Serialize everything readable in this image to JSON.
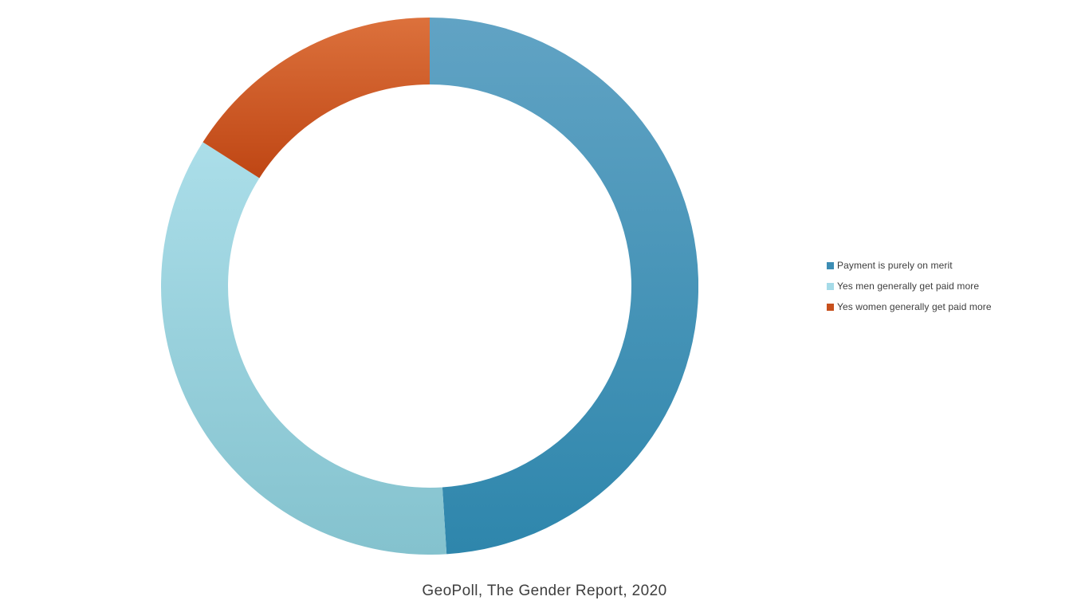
{
  "caption": "GeoPoll, The Gender Report, 2020",
  "legend": {
    "position": "right",
    "items": [
      {
        "label": "Payment is purely on merit",
        "color": "#3C8DB4"
      },
      {
        "label": "Yes men generally get paid more",
        "color": "#A5DBE8"
      },
      {
        "label": "Yes women generally get paid more",
        "color": "#C7501D"
      }
    ]
  },
  "chart_data": {
    "type": "pie",
    "subtype": "donut",
    "title": "",
    "categories": [
      "Payment is purely on merit",
      "Yes men generally get paid more",
      "Yes women generally get paid more"
    ],
    "values": [
      49,
      35,
      16
    ],
    "unit": "percent",
    "slugs": [
      "payment-merit",
      "men-paid-more",
      "women-paid-more"
    ],
    "slice_gradients": [
      [
        "#61A3C4",
        "#2E86AC"
      ],
      [
        "#ABDEE9",
        "#84C2CE"
      ],
      [
        "#DC713C",
        "#BF4614"
      ]
    ],
    "start_angle_deg": 0,
    "direction": "clockwise",
    "hole_ratio": 0.75,
    "data_labels": false,
    "legend_position": "right",
    "source_caption": "GeoPoll, The Gender Report, 2020"
  }
}
